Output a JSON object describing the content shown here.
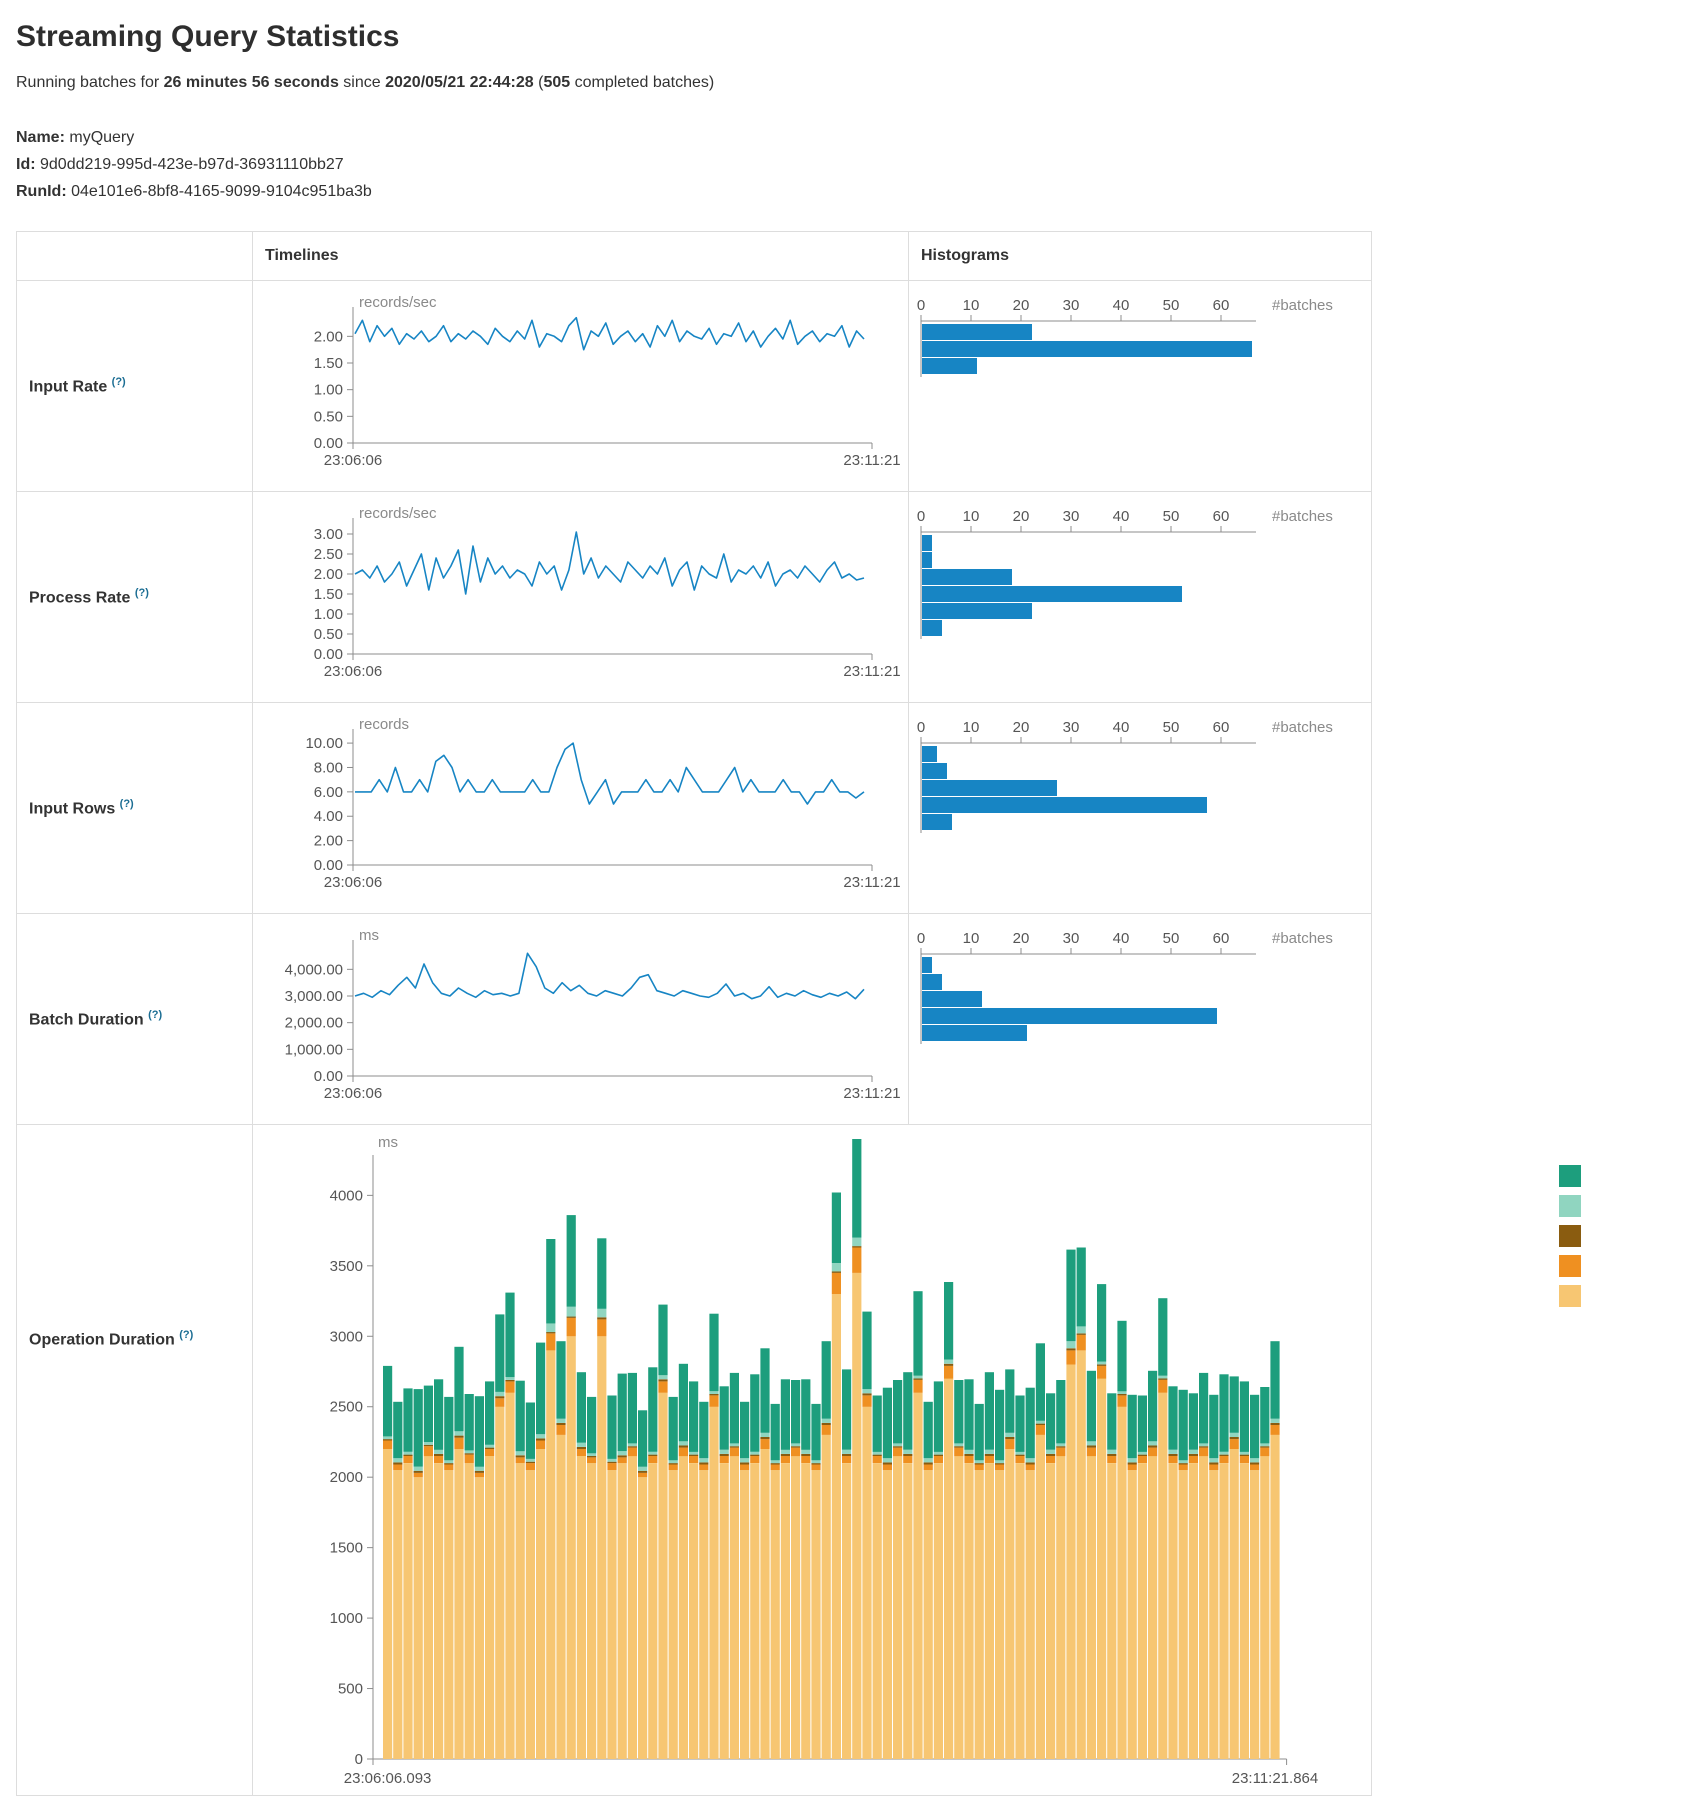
{
  "page": {
    "title": "Streaming Query Statistics",
    "subtitle": {
      "prefix": "Running batches for ",
      "duration": "26 minutes 56 seconds",
      "mid": " since ",
      "timestamp": "2020/05/21 22:44:28",
      "paren": " (",
      "count": "505",
      "suffix": " completed batches)"
    },
    "meta": [
      {
        "label": "Name:",
        "value": "myQuery"
      },
      {
        "label": "Id:",
        "value": "9d0dd219-995d-423e-b97d-36931110bb27"
      },
      {
        "label": "RunId:",
        "value": "04e101e6-8bf8-4165-9099-9104c951ba3b"
      }
    ]
  },
  "table": {
    "headers": {
      "timelines": "Timelines",
      "histograms": "Histograms"
    }
  },
  "colors": {
    "line": "#1785c4",
    "bar": "#1785c4",
    "axis": "#8c8c8c",
    "tick_text": "#555555",
    "unit_text": "#8a8a8a",
    "stack": {
      "teal": "#1d9e7d",
      "light_teal": "#90d5c0",
      "dark_brown": "#8a5c10",
      "orange": "#ef9021",
      "tan": "#f7c672"
    }
  },
  "chart_data": [
    {
      "id": "input-rate",
      "label": "Input Rate",
      "help": "(?)",
      "timeline": {
        "type": "line",
        "unit": "records/sec",
        "x_start": "23:06:06",
        "x_end": "23:11:21",
        "ylim": [
          0,
          2.4
        ],
        "yticks": [
          0,
          0.5,
          1,
          1.5,
          2
        ],
        "tick_format": "2",
        "values": [
          2.05,
          2.3,
          1.9,
          2.2,
          2.0,
          2.15,
          1.85,
          2.05,
          1.95,
          2.1,
          1.9,
          2.0,
          2.2,
          1.9,
          2.05,
          1.95,
          2.1,
          2.0,
          1.85,
          2.15,
          2.0,
          1.9,
          2.1,
          1.95,
          2.3,
          1.8,
          2.05,
          2.0,
          1.9,
          2.2,
          2.35,
          1.75,
          2.1,
          2.0,
          2.25,
          1.85,
          2.0,
          2.1,
          1.9,
          2.05,
          1.8,
          2.2,
          2.0,
          2.3,
          1.9,
          2.1,
          2.0,
          1.95,
          2.15,
          1.85,
          2.05,
          2.0,
          2.25,
          1.9,
          2.1,
          1.8,
          2.0,
          2.15,
          1.95,
          2.3,
          1.85,
          2.0,
          2.1,
          1.9,
          2.05,
          2.0,
          2.2,
          1.8,
          2.1,
          1.95
        ]
      },
      "histogram": {
        "type": "bar",
        "orientation": "horizontal",
        "xlabel": "#batches",
        "xticks": [
          0,
          10,
          20,
          30,
          40,
          50,
          60
        ],
        "xlim": [
          0,
          67
        ],
        "values": [
          22,
          66,
          11
        ]
      }
    },
    {
      "id": "process-rate",
      "label": "Process Rate",
      "help": "(?)",
      "timeline": {
        "type": "line",
        "unit": "records/sec",
        "x_start": "23:06:06",
        "x_end": "23:11:21",
        "ylim": [
          0,
          3.2
        ],
        "yticks": [
          0,
          0.5,
          1,
          1.5,
          2,
          2.5,
          3
        ],
        "tick_format": "2",
        "values": [
          2.0,
          2.1,
          1.9,
          2.2,
          1.8,
          2.0,
          2.3,
          1.7,
          2.1,
          2.5,
          1.6,
          2.4,
          1.9,
          2.2,
          2.6,
          1.5,
          2.7,
          1.8,
          2.4,
          2.0,
          2.2,
          1.9,
          2.1,
          2.0,
          1.7,
          2.3,
          2.0,
          2.2,
          1.6,
          2.1,
          3.05,
          2.0,
          2.4,
          1.9,
          2.2,
          2.0,
          1.8,
          2.3,
          2.1,
          1.9,
          2.2,
          2.0,
          2.4,
          1.7,
          2.1,
          2.3,
          1.6,
          2.2,
          2.0,
          1.9,
          2.5,
          1.8,
          2.1,
          2.0,
          2.2,
          1.9,
          2.3,
          1.7,
          2.0,
          2.1,
          1.9,
          2.2,
          2.0,
          1.8,
          2.1,
          2.3,
          1.9,
          2.0,
          1.85,
          1.9
        ]
      },
      "histogram": {
        "type": "bar",
        "orientation": "horizontal",
        "xlabel": "#batches",
        "xticks": [
          0,
          10,
          20,
          30,
          40,
          50,
          60
        ],
        "xlim": [
          0,
          67
        ],
        "values": [
          2,
          2,
          18,
          52,
          22,
          4
        ]
      }
    },
    {
      "id": "input-rows",
      "label": "Input Rows",
      "help": "(?)",
      "timeline": {
        "type": "line",
        "unit": "records",
        "x_start": "23:06:06",
        "x_end": "23:11:21",
        "ylim": [
          0,
          10.5
        ],
        "yticks": [
          0,
          2,
          4,
          6,
          8,
          10
        ],
        "tick_format": "2",
        "values": [
          6,
          6,
          6,
          7,
          6,
          8,
          6,
          6,
          7,
          6,
          8.5,
          9,
          8,
          6,
          7,
          6,
          6,
          7,
          6,
          6,
          6,
          6,
          7,
          6,
          6,
          8,
          9.5,
          10,
          7,
          5,
          6,
          7,
          5,
          6,
          6,
          6,
          7,
          6,
          6,
          7,
          6,
          8,
          7,
          6,
          6,
          6,
          7,
          8,
          6,
          7,
          6,
          6,
          6,
          7,
          6,
          6,
          5,
          6,
          6,
          7,
          6,
          6,
          5.5,
          6
        ]
      },
      "histogram": {
        "type": "bar",
        "orientation": "horizontal",
        "xlabel": "#batches",
        "xticks": [
          0,
          10,
          20,
          30,
          40,
          50,
          60
        ],
        "xlim": [
          0,
          67
        ],
        "values": [
          3,
          5,
          27,
          57,
          6
        ]
      }
    },
    {
      "id": "batch-duration",
      "label": "Batch Duration",
      "help": "(?)",
      "timeline": {
        "type": "line",
        "unit": "ms",
        "x_start": "23:06:06",
        "x_end": "23:11:21",
        "ylim": [
          0,
          4800
        ],
        "yticks": [
          0,
          1000,
          2000,
          3000,
          4000
        ],
        "tick_format": "c2",
        "values": [
          3000,
          3100,
          2950,
          3200,
          3050,
          3400,
          3700,
          3300,
          4200,
          3500,
          3100,
          3000,
          3300,
          3100,
          2950,
          3200,
          3050,
          3100,
          3000,
          3100,
          4600,
          4100,
          3300,
          3100,
          3500,
          3200,
          3400,
          3100,
          3000,
          3200,
          3100,
          3000,
          3300,
          3700,
          3800,
          3200,
          3100,
          3000,
          3200,
          3100,
          3000,
          2950,
          3100,
          3450,
          3000,
          3100,
          2900,
          3000,
          3350,
          2950,
          3100,
          3000,
          3200,
          3050,
          2950,
          3100,
          3000,
          3150,
          2900,
          3250
        ]
      },
      "histogram": {
        "type": "bar",
        "orientation": "horizontal",
        "xlabel": "#batches",
        "xticks": [
          0,
          10,
          20,
          30,
          40,
          50,
          60
        ],
        "xlim": [
          0,
          67
        ],
        "values": [
          2,
          4,
          12,
          59,
          21
        ]
      }
    },
    {
      "id": "operation-duration",
      "label": "Operation Duration",
      "help": "(?)",
      "timeline": {
        "type": "stacked-bar",
        "unit": "ms",
        "x_start": "23:06:06.093",
        "x_end": "23:11:21.864",
        "ylim": [
          0,
          4400
        ],
        "yticks": [
          0,
          500,
          1000,
          1500,
          2000,
          2500,
          3000,
          3500,
          4000
        ],
        "tick_format": "0",
        "legend": [
          "#1d9e7d",
          "#90d5c0",
          "#8a5c10",
          "#ef9021",
          "#f7c672"
        ],
        "series": [
          {
            "name": "series-tan",
            "color": "#f7c672",
            "values": [
              2200,
              2050,
              2100,
              2000,
              2150,
              2100,
              2050,
              2200,
              2100,
              2000,
              2150,
              2500,
              2600,
              2100,
              2050,
              2200,
              2900,
              2300,
              3000,
              2150,
              2100,
              3000,
              2050,
              2100,
              2150,
              2000,
              2100,
              2600,
              2050,
              2150,
              2100,
              2050,
              2500,
              2100,
              2150,
              2050,
              2100,
              2200,
              2050,
              2100,
              2150,
              2100,
              2050,
              2300,
              3300,
              2100,
              3450,
              2500,
              2100,
              2050,
              2150,
              2100,
              2600,
              2050,
              2100,
              2700,
              2150,
              2100,
              2050,
              2100,
              2050,
              2200,
              2100,
              2050,
              2300,
              2100,
              2150,
              2800,
              2900,
              2150,
              2700,
              2100,
              2500,
              2050,
              2100,
              2150,
              2600,
              2100,
              2050,
              2100,
              2150,
              2050,
              2100,
              2200,
              2100,
              2050,
              2150,
              2300
            ]
          },
          {
            "name": "series-orange",
            "color": "#ef9021",
            "values": [
              60,
              40,
              50,
              30,
              70,
              50,
              40,
              80,
              60,
              30,
              50,
              60,
              80,
              40,
              50,
              60,
              120,
              70,
              130,
              50,
              40,
              120,
              50,
              40,
              60,
              30,
              50,
              80,
              40,
              60,
              50,
              40,
              80,
              50,
              60,
              40,
              50,
              70,
              40,
              50,
              60,
              50,
              40,
              70,
              150,
              50,
              180,
              80,
              50,
              40,
              60,
              50,
              90,
              40,
              50,
              90,
              60,
              50,
              40,
              50,
              40,
              70,
              50,
              40,
              70,
              50,
              60,
              100,
              110,
              60,
              90,
              50,
              80,
              40,
              50,
              60,
              90,
              50,
              40,
              50,
              60,
              40,
              50,
              70,
              50,
              40,
              60,
              70
            ]
          },
          {
            "name": "series-dark-brown",
            "color": "#8a5c10",
            "values": [
              10,
              15,
              10,
              15,
              10,
              15,
              10,
              15,
              10,
              15,
              10,
              15,
              10,
              15,
              10,
              15,
              10,
              15,
              10,
              15,
              10,
              15,
              10,
              15,
              10,
              15,
              10,
              15,
              10,
              15,
              10,
              15,
              10,
              15,
              10,
              15,
              10,
              15,
              10,
              15,
              10,
              15,
              10,
              15,
              10,
              15,
              10,
              15,
              10,
              15,
              10,
              15,
              10,
              15,
              10,
              15,
              10,
              15,
              10,
              15,
              10,
              15,
              10,
              15,
              10,
              15,
              10,
              15,
              10,
              15,
              10,
              15,
              10,
              15,
              10,
              15,
              10,
              15,
              10,
              15,
              10,
              15,
              10,
              15,
              10,
              15,
              10,
              15
            ]
          },
          {
            "name": "series-light-teal",
            "color": "#90d5c0",
            "values": [
              20,
              30,
              20,
              30,
              20,
              30,
              20,
              30,
              20,
              30,
              20,
              30,
              20,
              30,
              20,
              30,
              60,
              30,
              70,
              30,
              20,
              60,
              20,
              30,
              20,
              30,
              20,
              30,
              20,
              30,
              20,
              30,
              20,
              30,
              20,
              30,
              20,
              30,
              20,
              30,
              20,
              30,
              20,
              30,
              60,
              30,
              60,
              30,
              20,
              30,
              20,
              30,
              20,
              30,
              20,
              30,
              20,
              30,
              20,
              30,
              20,
              30,
              20,
              30,
              20,
              30,
              20,
              50,
              50,
              30,
              20,
              30,
              20,
              30,
              20,
              30,
              20,
              30,
              20,
              30,
              20,
              30,
              20,
              30,
              20,
              30,
              20,
              30
            ]
          },
          {
            "name": "series-teal",
            "color": "#1d9e7d",
            "values": [
              500,
              400,
              450,
              550,
              400,
              500,
              450,
              600,
              400,
              500,
              450,
              550,
              600,
              500,
              400,
              650,
              600,
              550,
              650,
              500,
              400,
              500,
              450,
              550,
              500,
              400,
              600,
              500,
              450,
              550,
              500,
              400,
              550,
              450,
              500,
              400,
              550,
              600,
              400,
              500,
              450,
              500,
              400,
              550,
              500,
              570,
              700,
              550,
              400,
              500,
              450,
              550,
              600,
              400,
              500,
              550,
              450,
              500,
              400,
              550,
              500,
              450,
              400,
              500,
              550,
              400,
              450,
              650,
              560,
              500,
              550,
              400,
              500,
              450,
              400,
              500,
              550,
              450,
              500,
              400,
              500,
              450,
              550,
              400,
              500,
              450,
              400,
              550
            ]
          }
        ]
      }
    }
  ]
}
